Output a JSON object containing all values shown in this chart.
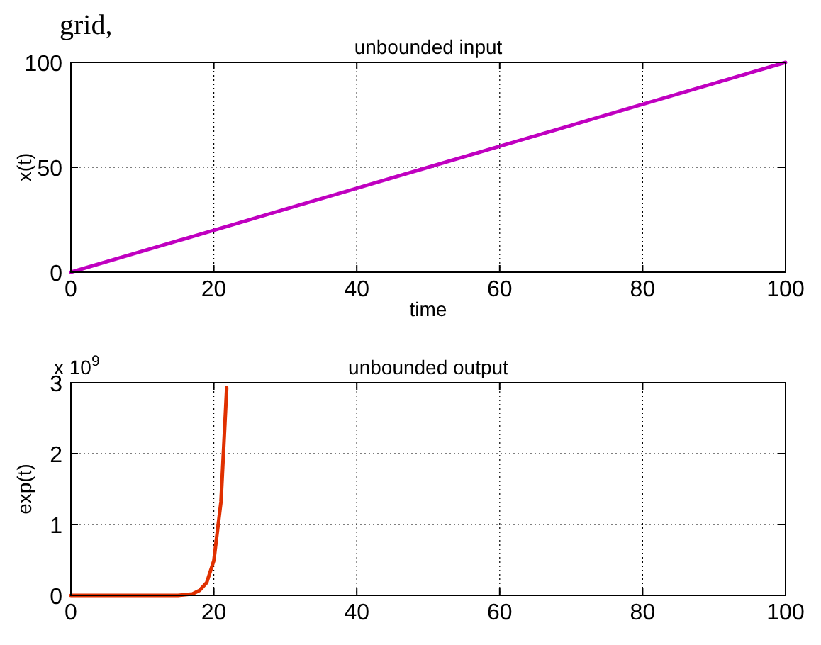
{
  "chart_data": [
    {
      "type": "line",
      "title": "unbounded input",
      "xlabel": "time",
      "ylabel": "x(t)",
      "annotations": [
        "grid,"
      ],
      "x": [
        0,
        10,
        20,
        30,
        40,
        50,
        60,
        70,
        80,
        90,
        100
      ],
      "series": [
        {
          "color": "#c000c0",
          "values": [
            0,
            10,
            20,
            30,
            40,
            50,
            60,
            70,
            80,
            90,
            100
          ]
        }
      ],
      "xlim": [
        0,
        100
      ],
      "xticks": [
        0,
        20,
        40,
        60,
        80,
        100
      ],
      "ylim": [
        0,
        100
      ],
      "yticks": [
        0,
        50,
        100
      ],
      "grid": true
    },
    {
      "type": "line",
      "title": "unbounded output",
      "ylabel": "exp(t)",
      "annotations": [
        "x 10$^{9}$"
      ],
      "x": [
        0,
        5,
        10,
        15,
        16,
        17,
        18,
        19,
        20,
        21,
        21.8
      ],
      "series": [
        {
          "color": "#e03000",
          "values": [
            0,
            0,
            0,
            0,
            0.01,
            0.02,
            0.07,
            0.18,
            0.49,
            1.32,
            2.93
          ]
        }
      ],
      "xlim": [
        0,
        100
      ],
      "xticks": [
        0,
        20,
        40,
        60,
        80,
        100
      ],
      "ylim": [
        0,
        3
      ],
      "yticks": [
        0,
        1,
        2,
        3
      ],
      "grid": true
    }
  ]
}
